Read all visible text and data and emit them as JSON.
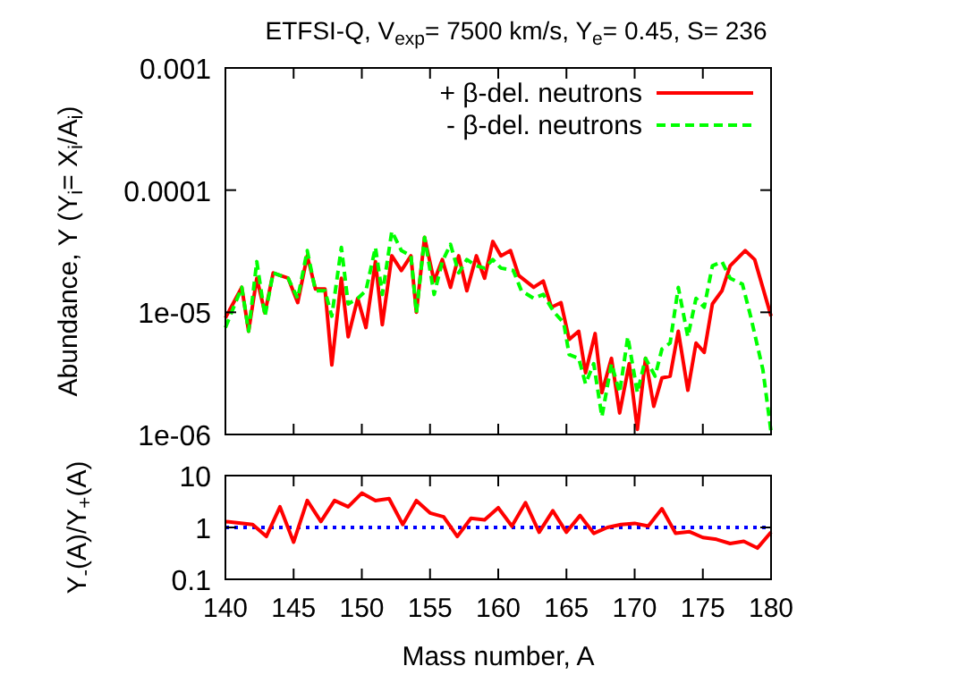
{
  "chart_data": [
    {
      "type": "line",
      "title": "ETFSI-Q, V$_{exp}$= 7500 km/s, Y$_{e}$= 0.45, S= 236",
      "ylabel": "Abundance, Y (Y$_{i}$= X$_{i}$/A$_{i}$)",
      "log": "y",
      "xlim": [
        140,
        180
      ],
      "xticks": [
        140,
        145,
        150,
        155,
        160,
        165,
        170,
        175,
        180
      ],
      "ylim": [
        1e-06,
        0.001
      ],
      "yticks": [
        {
          "value": 1e-06,
          "label": "1e-06"
        },
        {
          "value": 1e-05,
          "label": "1e-05"
        },
        {
          "value": 0.0001,
          "label": "0.0001"
        },
        {
          "value": 0.001,
          "label": "0.001"
        }
      ],
      "tick_labels": "y",
      "legend": "top right",
      "grid": false,
      "series": [
        {
          "name": "+ β-del. neutrons",
          "color": "#ff0000",
          "line_style": "solid",
          "x": [
            140,
            141.2,
            141.7,
            142.3,
            142.9,
            143.5,
            144.6,
            145.3,
            146,
            146.6,
            147.3,
            147.8,
            148.5,
            149,
            149.7,
            150.3,
            151,
            151.5,
            152.2,
            152.9,
            153.6,
            154,
            154.6,
            155.3,
            155.9,
            156.5,
            157.1,
            157.7,
            158.4,
            159,
            159.6,
            160.2,
            160.9,
            161.5,
            162.6,
            163.3,
            163.9,
            164.6,
            165.2,
            165.9,
            166.4,
            167.1,
            167.6,
            168.3,
            168.9,
            169.6,
            170.2,
            170.8,
            171.4,
            172,
            172.6,
            173.2,
            173.9,
            174.5,
            175.1,
            175.7,
            176.4,
            177,
            178.1,
            178.8,
            180
          ],
          "values": [
            9e-06,
            1.6e-05,
            7e-06,
            1.9e-05,
            9.9e-06,
            2.1e-05,
            1.9e-05,
            1.2e-05,
            2.9e-05,
            1.55e-05,
            1.55e-05,
            3.7e-06,
            1.9e-05,
            6.3e-06,
            1.3e-05,
            7.5e-06,
            2.6e-05,
            7.9e-06,
            2.9e-05,
            2.2e-05,
            2.9e-05,
            1e-05,
            4.1e-05,
            1.8e-05,
            2.7e-05,
            1.6e-05,
            2.9e-05,
            1.5e-05,
            2.9e-05,
            1.9e-05,
            3.8e-05,
            2.9e-05,
            3.2e-05,
            2e-05,
            1.6e-05,
            1.8e-05,
            1.1e-05,
            1.2e-05,
            6e-06,
            7e-06,
            3.2e-06,
            6.7e-06,
            2.2e-06,
            4.2e-06,
            1.5e-06,
            3.8e-06,
            1.1e-06,
            4.2e-06,
            1.7e-06,
            2.9e-06,
            3e-06,
            7e-06,
            2.3e-06,
            5.6e-06,
            4.7e-06,
            1.17e-05,
            1.5e-05,
            2.4e-05,
            3.2e-05,
            2.7e-05,
            9.3e-06
          ]
        },
        {
          "name": "- β-del. neutrons",
          "color": "#00ff00",
          "line_style": "dashed",
          "x": [
            140,
            141.2,
            141.7,
            142.3,
            142.9,
            143.5,
            144.6,
            145.3,
            146,
            146.6,
            147.3,
            147.8,
            148.5,
            149,
            149.7,
            150.3,
            151,
            151.5,
            152.2,
            152.9,
            153.6,
            154,
            154.6,
            155.3,
            155.9,
            156.5,
            157.1,
            157.7,
            158.4,
            159,
            159.6,
            160.2,
            161.1,
            161.7,
            162.6,
            163.3,
            164.1,
            164.8,
            165.2,
            165.9,
            166.4,
            167,
            167.6,
            168.3,
            168.9,
            169.5,
            170.2,
            170.8,
            171.5,
            172,
            172.6,
            173.2,
            173.9,
            174.5,
            175.1,
            175.7,
            176.4,
            177,
            177.9,
            178.5,
            179.4,
            180
          ],
          "values": [
            7.5e-06,
            1.6e-05,
            7e-06,
            2.6e-05,
            9.3e-06,
            2.1e-05,
            1.9e-05,
            1.3e-05,
            3.2e-05,
            1.5e-05,
            1.5e-05,
            9.3e-06,
            3.4e-05,
            1.17e-05,
            1.3e-05,
            1.5e-05,
            3.4e-05,
            1.4e-05,
            4.6e-05,
            3.2e-05,
            2.9e-05,
            9.9e-06,
            4.1e-05,
            1.4e-05,
            2.6e-05,
            3.6e-05,
            2.1e-05,
            2.7e-05,
            2.4e-05,
            2.3e-05,
            2.7e-05,
            2.3e-05,
            2.2e-05,
            1.5e-05,
            1.3e-05,
            1.4e-05,
            1e-05,
            8.2e-06,
            4.5e-06,
            4.2e-06,
            2.6e-06,
            3.8e-06,
            1.4e-06,
            3.8e-06,
            2.2e-06,
            6.3e-06,
            2.2e-06,
            4.2e-06,
            3e-06,
            5e-06,
            5.6e-06,
            1.6e-05,
            6.3e-06,
            1.3e-05,
            1.1e-05,
            2.4e-05,
            2.6e-05,
            1.9e-05,
            1.7e-05,
            9.3e-06,
            3.4e-06,
            1.05e-06
          ]
        }
      ]
    },
    {
      "type": "line",
      "xlabel": "Mass number, A",
      "ylabel": "Y$_{-}$(A)/Y$_{+}$(A)",
      "log": "y",
      "xlim": [
        140,
        180
      ],
      "xticks": [
        140,
        145,
        150,
        155,
        160,
        165,
        170,
        175,
        180
      ],
      "ylim": [
        0.1,
        10
      ],
      "yticks": [
        0.1,
        1,
        10
      ],
      "grid": false,
      "ref_lines": [
        {
          "axis": "y",
          "value": 1,
          "color": "#0000ff",
          "line_style": "dotted"
        }
      ],
      "series": [
        {
          "color": "#ff0000",
          "line_style": "solid",
          "x": [
            140,
            142,
            143,
            144,
            145,
            146,
            147,
            148,
            149,
            150,
            151,
            152,
            153,
            154,
            155,
            156,
            157,
            158,
            159,
            160,
            161,
            162,
            163,
            164,
            165,
            166,
            167,
            168,
            169,
            170,
            171,
            172,
            173,
            174,
            175,
            176,
            177,
            178,
            179,
            180
          ],
          "values": [
            1.3,
            1.14,
            0.67,
            2.5,
            0.52,
            3.3,
            1.3,
            3.3,
            2.5,
            4.6,
            3.3,
            3.6,
            1.14,
            3.3,
            1.9,
            1.6,
            0.67,
            1.5,
            1.4,
            2.4,
            1.06,
            3,
            0.81,
            2.1,
            0.81,
            1.7,
            0.77,
            1,
            1.14,
            1.2,
            1.06,
            2.3,
            0.77,
            0.83,
            0.64,
            0.59,
            0.49,
            0.54,
            0.4,
            0.81
          ]
        }
      ]
    }
  ]
}
